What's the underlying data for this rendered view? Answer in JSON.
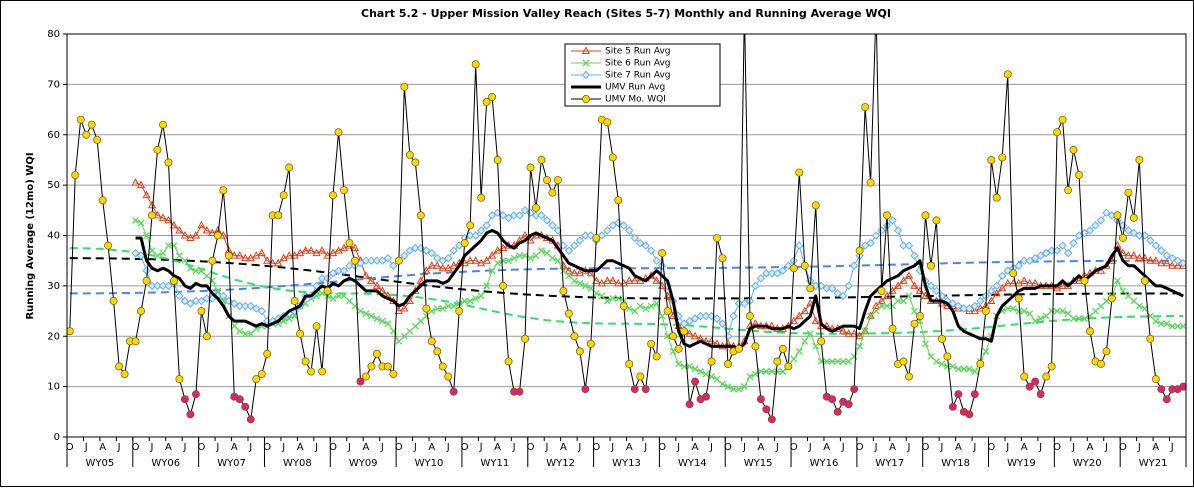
{
  "chart_data": {
    "type": "line",
    "title": "Chart 5.2 - Upper Mission Valley Reach (Sites 5-7) Monthly and Running Average WQI",
    "y_label": "Running Average (12mo) WQI",
    "categories": [
      "O",
      null,
      null,
      "J",
      null,
      null,
      "A",
      null,
      null,
      "J",
      null,
      null,
      "O",
      null,
      null,
      "J",
      null,
      null,
      "A",
      null,
      null,
      "J",
      null,
      null,
      "O",
      null,
      null,
      "J",
      null,
      null,
      "A",
      null,
      null,
      "J",
      null,
      null,
      "O",
      null,
      null,
      "J",
      null,
      null,
      "A",
      null,
      null,
      "J",
      null,
      null,
      "O",
      null,
      null,
      "J",
      null,
      null,
      "A",
      null,
      null,
      "J",
      null,
      null,
      "O",
      null,
      null,
      "J",
      null,
      null,
      "A",
      null,
      null,
      "J",
      null,
      null,
      "O",
      null,
      null,
      "J",
      null,
      null,
      "A",
      null,
      null,
      "J",
      null,
      null,
      "O",
      null,
      null,
      "J",
      null,
      null,
      "A",
      null,
      null,
      "J",
      null,
      null,
      "O",
      null,
      null,
      "J",
      null,
      null,
      "A",
      null,
      null,
      "J",
      null,
      null,
      "O",
      null,
      null,
      "J",
      null,
      null,
      "A",
      null,
      null,
      "J",
      null,
      null,
      "O",
      null,
      null,
      "J",
      null,
      null,
      "A",
      null,
      null,
      "J",
      null,
      null,
      "O",
      null,
      null,
      "J",
      null,
      null,
      "A",
      null,
      null,
      "J",
      null,
      null,
      "O",
      null,
      null,
      "J",
      null,
      null,
      "A",
      null,
      null,
      "J",
      null,
      null,
      "O",
      null,
      null,
      "J",
      null,
      null,
      "A",
      null,
      null,
      "J",
      null,
      null,
      "O",
      null,
      null,
      "J",
      null,
      null,
      "A",
      null,
      null,
      "J",
      null,
      null,
      "O",
      null,
      null,
      "J",
      null,
      null,
      "A",
      null,
      null,
      "J",
      null,
      null,
      "O",
      null,
      null,
      "J",
      null,
      null,
      "A",
      null,
      null,
      "J",
      null,
      null
    ],
    "water_years": [
      "WY05",
      "WY06",
      "WY07",
      "WY08",
      "WY09",
      "WY10",
      "WY11",
      "WY12",
      "WY13",
      "WY14",
      "WY15",
      "WY16",
      "WY17",
      "WY18",
      "WY19",
      "WY20",
      "WY21"
    ],
    "ylim": [
      0,
      80
    ],
    "yticks": [
      0,
      10,
      20,
      30,
      40,
      50,
      60,
      70,
      80
    ],
    "grid": true,
    "legend": "top-center",
    "low_threshold": 11.5,
    "low_color": "#e0207a",
    "series": [
      {
        "name": "Site 5 Run Avg",
        "color": "#e0401a",
        "marker": "triangle",
        "width": 1,
        "values": [
          null,
          null,
          null,
          null,
          null,
          null,
          null,
          null,
          null,
          null,
          null,
          null,
          50.5,
          50,
          48,
          46,
          44,
          43.5,
          43,
          42,
          41,
          40,
          39.5,
          40,
          42,
          41,
          40.5,
          41,
          40,
          37,
          36,
          36,
          35.5,
          35.5,
          36,
          36.5,
          35,
          34.5,
          34.5,
          35.5,
          36,
          36,
          36.5,
          37,
          37,
          36.5,
          37,
          36,
          36.5,
          37,
          37.5,
          38,
          37.5,
          35,
          32,
          31,
          30,
          29,
          28,
          27,
          25,
          25.5,
          27,
          29,
          31,
          33,
          34,
          34,
          33.5,
          33.5,
          34,
          34.5,
          34.5,
          35,
          35,
          34.5,
          35,
          36,
          37,
          37.5,
          38,
          38,
          39,
          40,
          39,
          40,
          40,
          39.5,
          39,
          38,
          34,
          33,
          32.5,
          32.5,
          33,
          32.5,
          31,
          30.5,
          31,
          31,
          30.5,
          30.5,
          31,
          31,
          31,
          31.5,
          32,
          31,
          30,
          28,
          24,
          22,
          21,
          20.5,
          20,
          19.5,
          19,
          19,
          18.5,
          18,
          18.5,
          18,
          18,
          19,
          22,
          22.5,
          22,
          22,
          22,
          21.5,
          21.5,
          22,
          23,
          24,
          25,
          26.5,
          23,
          22,
          22,
          21.5,
          21.5,
          21,
          20.5,
          20.5,
          20,
          21,
          24,
          26,
          27,
          28,
          29,
          30,
          31,
          32,
          30,
          29,
          28,
          27,
          27,
          26.5,
          26,
          26,
          25.5,
          25.5,
          25,
          25,
          25.5,
          26,
          27,
          28.5,
          29.5,
          30.5,
          30.5,
          30.5,
          31,
          30.5,
          30.5,
          30,
          30,
          30,
          29.5,
          30,
          30,
          31,
          31,
          32,
          32.5,
          33,
          33,
          34,
          35,
          38,
          36.5,
          36,
          36,
          35.5,
          35.5,
          35,
          35,
          34.5,
          34.5,
          34,
          34,
          34
        ]
      },
      {
        "name": "Site 6 Run Avg",
        "color": "#5cd65c",
        "marker": "x",
        "width": 1,
        "values": [
          null,
          null,
          null,
          null,
          null,
          null,
          null,
          null,
          null,
          null,
          null,
          null,
          43,
          42.5,
          40,
          37,
          36,
          36.5,
          38,
          38,
          36,
          35,
          33.5,
          33,
          33,
          32,
          31,
          29,
          27,
          24,
          22,
          21,
          20.5,
          20.5,
          21.5,
          22,
          22,
          22.5,
          22.5,
          23,
          23.5,
          24,
          26,
          26.5,
          27.5,
          28,
          28.5,
          28,
          27.5,
          28,
          28,
          27,
          26,
          25,
          24.5,
          24,
          23.5,
          23,
          22.5,
          21,
          19,
          20,
          21,
          22,
          23,
          24,
          25,
          25.5,
          25.5,
          26,
          26,
          26.5,
          27,
          27,
          27.5,
          28,
          30,
          33,
          34.5,
          35,
          35,
          35.5,
          36,
          36,
          35.5,
          36,
          37,
          36.5,
          35.5,
          35,
          33,
          32,
          31,
          30.5,
          30,
          29.5,
          28.5,
          28,
          27,
          27.5,
          27.5,
          27,
          25.5,
          25,
          26,
          25.5,
          26,
          26.5,
          24,
          20,
          17,
          14.5,
          14,
          14,
          13.5,
          13,
          12.5,
          12,
          11.5,
          10.5,
          10,
          9.5,
          9.5,
          10,
          12,
          12.5,
          13,
          13,
          13,
          13,
          13,
          14,
          15.5,
          17,
          19,
          20.5,
          18,
          15,
          15,
          15,
          15,
          15,
          15,
          16,
          18,
          21,
          24,
          25,
          26,
          26,
          26,
          27,
          27,
          28,
          25,
          23,
          18.5,
          16,
          15,
          14.5,
          14,
          14,
          13.5,
          13.5,
          13.5,
          13,
          15,
          17,
          20,
          24,
          25,
          25.5,
          25.5,
          25,
          25,
          24.5,
          23,
          23.5,
          24,
          25,
          25,
          25,
          24.5,
          23.5,
          23.5,
          23.5,
          24,
          25,
          26,
          27,
          28,
          31,
          29,
          28,
          27,
          26,
          25.5,
          24,
          23,
          22.5,
          22.5,
          22,
          22,
          22
        ]
      },
      {
        "name": "Site 7 Run Avg",
        "color": "#6aaee8",
        "marker": "diamond",
        "width": 1,
        "values": [
          null,
          null,
          null,
          null,
          null,
          null,
          null,
          null,
          null,
          null,
          null,
          null,
          36.5,
          36,
          33,
          30,
          30,
          30,
          30,
          30.5,
          28,
          27,
          26.5,
          27,
          27,
          27.5,
          27.5,
          28,
          28,
          27,
          26.5,
          26,
          26,
          26,
          25.5,
          25,
          23,
          23,
          23.5,
          24,
          24.5,
          25,
          26,
          28,
          28,
          30,
          31.5,
          31.5,
          32.5,
          33,
          33,
          34,
          34,
          34.5,
          35,
          35,
          35,
          35,
          35.5,
          34,
          35,
          36,
          37,
          37.5,
          37.5,
          37,
          36.5,
          35.5,
          35,
          35.5,
          37,
          38,
          39.5,
          40,
          40,
          41,
          42,
          44,
          44.5,
          44,
          43.5,
          44,
          44,
          45,
          44.5,
          44,
          44,
          43,
          42,
          41,
          38,
          37,
          38,
          39,
          40,
          40,
          39,
          40,
          41,
          42,
          42.5,
          42,
          41,
          39.5,
          38.5,
          38,
          37,
          35,
          34,
          30,
          27,
          24,
          22.5,
          23,
          23.5,
          24,
          24,
          24,
          23.5,
          22.5,
          20,
          24,
          26.5,
          26.5,
          27,
          30,
          31.5,
          32.5,
          32.5,
          32.5,
          33,
          34,
          35,
          38,
          34,
          31,
          30,
          30,
          29.5,
          29.5,
          28.5,
          28,
          30,
          34,
          36,
          38,
          38.5,
          40,
          41,
          42,
          43,
          41,
          38,
          38,
          36,
          33,
          31,
          30,
          29,
          28,
          27,
          26.5,
          26,
          25.5,
          25.5,
          26,
          27,
          28,
          29,
          30,
          32,
          33,
          33.5,
          34,
          35,
          35,
          35.5,
          36,
          36.5,
          37,
          37,
          38,
          36.5,
          38.5,
          40,
          40.5,
          41,
          42,
          43,
          44.5,
          44,
          43,
          42,
          41,
          40.5,
          40,
          40,
          39,
          38,
          37,
          36,
          35.5,
          35,
          34.5
        ]
      },
      {
        "name": "UMV Run Avg",
        "color": "#000000",
        "marker": "none",
        "width": 3,
        "values": [
          null,
          null,
          null,
          null,
          null,
          null,
          null,
          null,
          null,
          null,
          null,
          null,
          39.5,
          39.5,
          35,
          33.5,
          33,
          33.5,
          33,
          32,
          31.5,
          30,
          29.5,
          30.5,
          30,
          30,
          28.5,
          27.5,
          26,
          24,
          23,
          23,
          23,
          22.5,
          22,
          22.5,
          22,
          22.5,
          23,
          24,
          25,
          25.5,
          26,
          28,
          28,
          29,
          30,
          29.5,
          30.5,
          30,
          31,
          31.5,
          31,
          30,
          29,
          29,
          29,
          28,
          27.5,
          27,
          26,
          26.5,
          28,
          29,
          30,
          31,
          31,
          31,
          30.5,
          31,
          32.5,
          34,
          36,
          37,
          38,
          39,
          40.5,
          41,
          40.5,
          39,
          38,
          37.5,
          38.5,
          39,
          40,
          40.5,
          40,
          39.5,
          39,
          37.5,
          36,
          34.5,
          34,
          33.5,
          33,
          33,
          33,
          34,
          35,
          35,
          34.5,
          34,
          33.5,
          32,
          31.5,
          31,
          32,
          33,
          32,
          31,
          27,
          21,
          18.5,
          18,
          18.5,
          19,
          18.5,
          18,
          18,
          18,
          18,
          18,
          17.5,
          18.5,
          21.5,
          22,
          22,
          22,
          21.5,
          21.5,
          21.5,
          22,
          21.5,
          22,
          23,
          24,
          28,
          22.5,
          21.5,
          21,
          21.5,
          22,
          22,
          22,
          21.5,
          25,
          28,
          29,
          30,
          31,
          31.5,
          32,
          33,
          33.5,
          34,
          35,
          30,
          27,
          27,
          27,
          26.5,
          25,
          22,
          21,
          20.5,
          20,
          19.5,
          19.5,
          19,
          24,
          26,
          27,
          28,
          29,
          29.5,
          29.5,
          29.5,
          30,
          30,
          30,
          30,
          31,
          30,
          31,
          32,
          31,
          32,
          33,
          33.5,
          34,
          36,
          37.5,
          35,
          34,
          34,
          33,
          32,
          31,
          30,
          30,
          29.5,
          29,
          28.5,
          28
        ]
      },
      {
        "name": "UMV Mo. WQI",
        "color": "#000000",
        "marker": "circle",
        "marker_color": "#ffd700",
        "width": 1,
        "values": [
          21,
          52,
          63,
          60,
          62,
          59,
          47,
          38,
          27,
          14,
          12.5,
          19,
          19,
          25,
          31,
          44,
          57,
          62,
          54.5,
          31,
          11.5,
          7.5,
          4.5,
          8.5,
          25,
          20,
          35,
          40,
          49,
          36,
          8,
          7.5,
          6,
          3.5,
          11.5,
          12.5,
          16.5,
          44,
          44,
          48,
          53.5,
          27,
          20.5,
          15,
          13,
          22,
          13,
          29,
          48,
          60.5,
          49,
          38.5,
          35,
          11,
          12,
          14,
          16.5,
          14,
          14,
          12.5,
          35,
          69.5,
          56,
          54.5,
          44,
          25.5,
          19,
          17,
          14,
          12,
          9,
          25,
          38.5,
          42,
          74,
          47.5,
          66.5,
          67.5,
          55,
          30,
          15,
          9,
          9,
          19.5,
          53.5,
          45.5,
          55,
          51,
          48.5,
          51,
          29,
          24.5,
          20,
          17,
          9.5,
          18.5,
          39.5,
          63,
          62.5,
          55.5,
          47,
          26,
          14.5,
          9.5,
          12,
          9.5,
          18.5,
          16,
          36.5,
          25,
          20,
          17.5,
          21,
          6.5,
          11,
          7.5,
          8,
          15,
          39.5,
          35.5,
          14.5,
          17,
          17.5,
          85,
          24,
          18,
          7.5,
          5.5,
          3.5,
          15,
          17.5,
          14,
          33.5,
          52.5,
          34,
          29.5,
          46,
          19,
          8,
          7.5,
          5,
          7,
          6.5,
          9.5,
          37,
          65.5,
          50.5,
          85,
          29,
          44,
          21.5,
          14.5,
          15,
          12,
          22.5,
          24,
          44,
          34,
          43,
          19.5,
          16,
          6,
          8.5,
          5,
          4.5,
          8.5,
          14.5,
          25,
          55,
          47.5,
          55.5,
          72,
          32.5,
          27.5,
          12,
          10,
          11,
          8.5,
          12,
          14,
          60.5,
          63,
          49,
          57,
          52,
          31,
          21,
          15,
          14.5,
          17,
          27.5,
          44,
          39.5,
          48.5,
          43.5,
          55,
          31,
          19.5,
          11.5,
          9.5,
          7.5,
          9.5,
          9.5,
          10
        ]
      }
    ],
    "trendlines": [
      {
        "color": "#000000",
        "x": [
          0,
          110,
          203
        ],
        "values": [
          35.5,
          27.5,
          28.5
        ]
      },
      {
        "color": "#4a86e8",
        "x": [
          0,
          100,
          203
        ],
        "values": [
          28.5,
          33.5,
          35
        ]
      },
      {
        "color": "#33dd66",
        "x": [
          0,
          50,
          100,
          140,
          203
        ],
        "values": [
          37.5,
          28.5,
          22.5,
          20.5,
          24
        ]
      }
    ]
  }
}
